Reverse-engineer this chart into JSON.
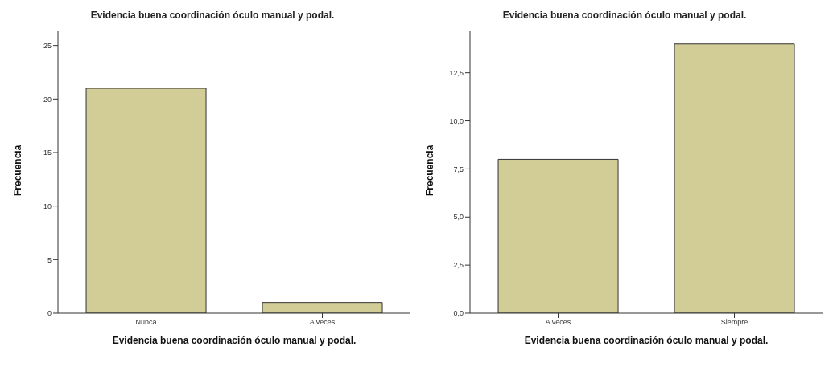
{
  "chart_data": [
    {
      "type": "bar",
      "title": "Evidencia buena coordinación óculo manual y podal.",
      "xlabel": "Evidencia buena coordinación óculo manual y podal.",
      "ylabel": "Frecuencia",
      "categories": [
        "Nunca",
        "A veces"
      ],
      "values": [
        21,
        1
      ],
      "color": "#d2cd96",
      "ylim": [
        0,
        26.4
      ],
      "yticks": [
        0,
        5,
        10,
        15,
        20,
        25
      ],
      "grid": false,
      "legend": false
    },
    {
      "type": "bar",
      "title": "Evidencia buena coordinación óculo manual y podal.",
      "xlabel": "Evidencia buena coordinación óculo manual y podal.",
      "ylabel": "Frecuencia",
      "categories": [
        "A veces",
        "Siempre"
      ],
      "values": [
        8,
        14
      ],
      "color": "#d2cd96",
      "ylim": [
        0,
        14.7
      ],
      "yticks": [
        {
          "value": 0,
          "label": "0,0"
        },
        {
          "value": 2.5,
          "label": "2,5"
        },
        {
          "value": 5,
          "label": "5,0"
        },
        {
          "value": 7.5,
          "label": "7,5"
        },
        {
          "value": 10,
          "label": "10,0"
        },
        {
          "value": 12.5,
          "label": "12,5"
        }
      ],
      "grid": false,
      "legend": false
    }
  ]
}
